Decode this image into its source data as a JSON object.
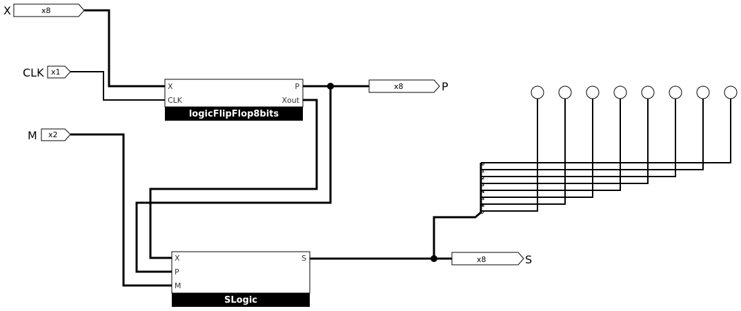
{
  "inputs": {
    "x": {
      "label": "X",
      "width": "x8"
    },
    "clk": {
      "label": "CLK",
      "width": "x1"
    },
    "m": {
      "label": "M",
      "width": "x2"
    }
  },
  "outputs": {
    "p": {
      "label": "P",
      "width": "x8"
    },
    "s": {
      "label": "S",
      "width": "x8"
    }
  },
  "flipflop": {
    "title": "logicFlipFlop8bits",
    "ports": {
      "x": "X",
      "clk": "CLK",
      "p": "P",
      "xout": "Xout"
    }
  },
  "slogic": {
    "title": "SLogic",
    "ports": {
      "x": "X",
      "p": "P",
      "m": "M",
      "s": "S"
    }
  },
  "splitter": {
    "indices": [
      "0",
      "1",
      "2",
      "3",
      "4",
      "5",
      "6",
      "7"
    ]
  },
  "probes_count": 8
}
